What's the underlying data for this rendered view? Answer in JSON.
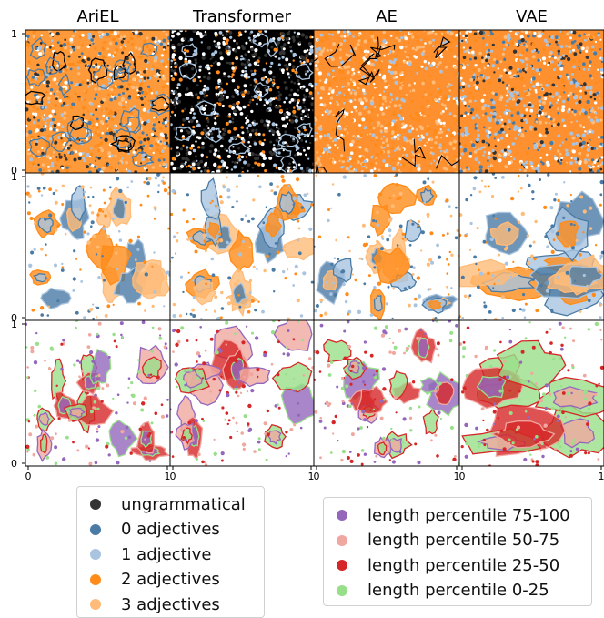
{
  "chart_data": {
    "type": "scatter",
    "panel_titles": [
      "AriEL",
      "Transformer",
      "AE",
      "VAE"
    ],
    "rows": 3,
    "cols": 4,
    "y_ticks": [
      "0",
      "1"
    ],
    "x_ticks": [
      "0",
      "1"
    ],
    "xlim": [
      0,
      1
    ],
    "ylim": [
      0,
      1
    ],
    "legends": [
      {
        "position": "bottom-left",
        "entries": [
          {
            "label": "ungrammatical",
            "color": "#333333"
          },
          {
            "label": "0 adjectives",
            "color": "#4a7ba5"
          },
          {
            "label": "1 adjective",
            "color": "#a9c4e0"
          },
          {
            "label": "2 adjectives",
            "color": "#ff8c1a"
          },
          {
            "label": "3 adjectives",
            "color": "#ffbb78"
          }
        ]
      },
      {
        "position": "bottom-right",
        "entries": [
          {
            "label": "length percentile 75-100",
            "color": "#9467bd"
          },
          {
            "label": "length percentile 50-75",
            "color": "#f0a7a0"
          },
          {
            "label": "length percentile 25-50",
            "color": "#d62728"
          },
          {
            "label": "length percentile 0-25",
            "color": "#98df8a"
          }
        ]
      }
    ]
  }
}
